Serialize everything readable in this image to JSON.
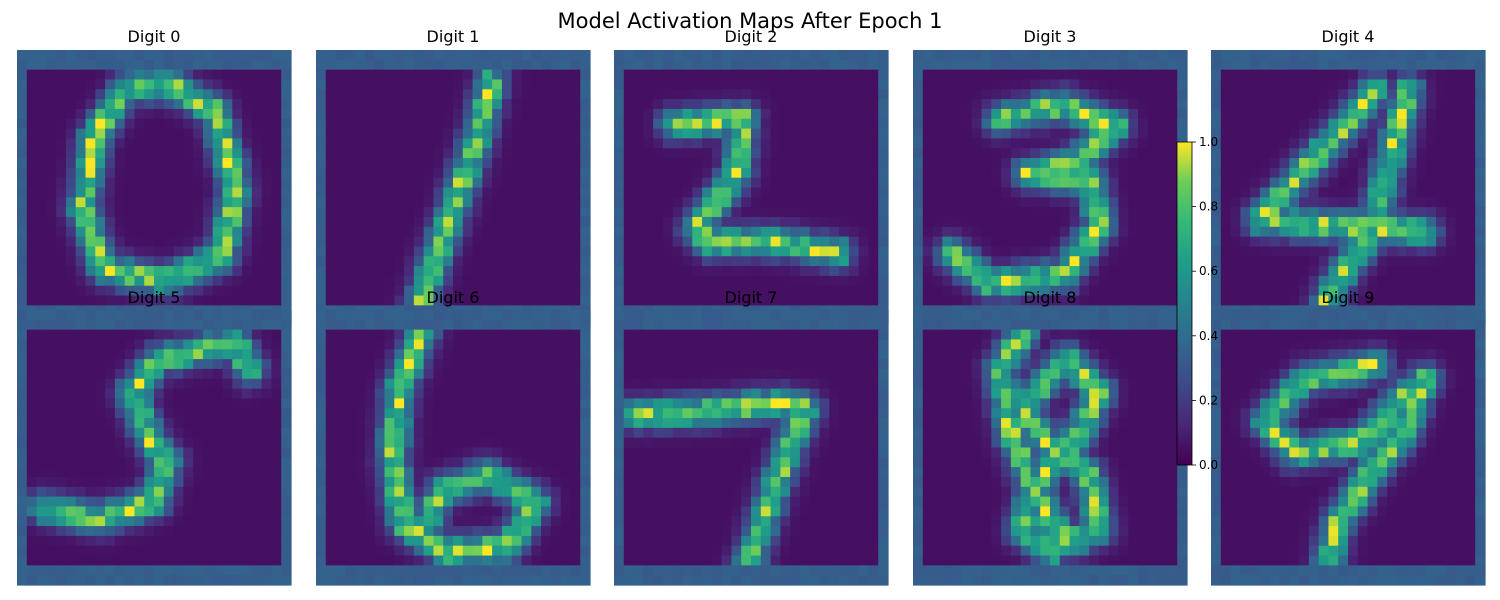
{
  "figure": {
    "title": "Model Activation Maps After Epoch 1"
  },
  "chart_data": {
    "type": "heatmap",
    "title": "Model Activation Maps After Epoch 1",
    "colormap": "viridis",
    "grid": false,
    "layout": "2 rows x 5 columns",
    "panels": [
      {
        "title": "Digit 0",
        "stroke": [
          [
            0.56,
            0.13
          ],
          [
            0.4,
            0.14
          ],
          [
            0.28,
            0.32
          ],
          [
            0.24,
            0.58
          ],
          [
            0.32,
            0.8
          ],
          [
            0.55,
            0.84
          ],
          [
            0.75,
            0.75
          ],
          [
            0.8,
            0.5
          ],
          [
            0.72,
            0.22
          ],
          [
            0.56,
            0.13
          ]
        ]
      },
      {
        "title": "Digit 1",
        "stroke": [
          [
            0.64,
            0.12
          ],
          [
            0.58,
            0.35
          ],
          [
            0.5,
            0.58
          ],
          [
            0.42,
            0.8
          ],
          [
            0.38,
            0.93
          ]
        ]
      },
      {
        "title": "Digit 2",
        "stroke": [
          [
            0.22,
            0.27
          ],
          [
            0.47,
            0.25
          ],
          [
            0.45,
            0.45
          ],
          [
            0.3,
            0.65
          ],
          [
            0.35,
            0.7
          ],
          [
            0.6,
            0.7
          ],
          [
            0.82,
            0.74
          ]
        ]
      },
      {
        "title": "Digit 3",
        "stroke": [
          [
            0.32,
            0.25
          ],
          [
            0.55,
            0.2
          ],
          [
            0.74,
            0.28
          ],
          [
            0.58,
            0.42
          ],
          [
            0.42,
            0.45
          ],
          [
            0.65,
            0.48
          ],
          [
            0.68,
            0.64
          ],
          [
            0.55,
            0.82
          ],
          [
            0.28,
            0.85
          ],
          [
            0.14,
            0.74
          ]
        ]
      },
      {
        "title": "Digit 4",
        "stroke": [
          [
            0.6,
            0.15
          ],
          [
            0.42,
            0.35
          ],
          [
            0.18,
            0.62
          ],
          [
            0.6,
            0.65
          ],
          [
            0.78,
            0.66
          ],
          null,
          [
            0.72,
            0.15
          ],
          [
            0.64,
            0.45
          ],
          [
            0.6,
            0.65
          ],
          [
            0.5,
            0.78
          ],
          [
            0.42,
            0.92
          ]
        ]
      },
      {
        "title": "Digit 5",
        "stroke": [
          [
            0.8,
            0.12
          ],
          [
            0.52,
            0.18
          ],
          [
            0.42,
            0.3
          ],
          [
            0.48,
            0.46
          ],
          [
            0.55,
            0.55
          ],
          [
            0.5,
            0.7
          ],
          [
            0.3,
            0.76
          ],
          [
            0.1,
            0.72
          ],
          null,
          [
            0.8,
            0.12
          ],
          [
            0.85,
            0.22
          ]
        ]
      },
      {
        "title": "Digit 6",
        "stroke": [
          [
            0.4,
            0.05
          ],
          [
            0.3,
            0.3
          ],
          [
            0.28,
            0.55
          ],
          [
            0.32,
            0.78
          ],
          [
            0.48,
            0.88
          ],
          [
            0.7,
            0.86
          ],
          [
            0.8,
            0.7
          ],
          [
            0.62,
            0.6
          ],
          [
            0.46,
            0.66
          ],
          [
            0.4,
            0.78
          ]
        ]
      },
      {
        "title": "Digit 7",
        "stroke": [
          [
            0.08,
            0.38
          ],
          [
            0.32,
            0.37
          ],
          [
            0.6,
            0.34
          ],
          [
            0.7,
            0.36
          ],
          [
            0.62,
            0.55
          ],
          [
            0.54,
            0.78
          ],
          [
            0.48,
            0.96
          ]
        ]
      },
      {
        "title": "Digit 8",
        "stroke": [
          [
            0.4,
            0.08
          ],
          [
            0.32,
            0.22
          ],
          [
            0.36,
            0.45
          ],
          [
            0.44,
            0.65
          ],
          [
            0.56,
            0.85
          ],
          [
            0.68,
            0.8
          ],
          [
            0.64,
            0.6
          ],
          [
            0.5,
            0.5
          ],
          [
            0.4,
            0.35
          ],
          [
            0.56,
            0.18
          ],
          [
            0.68,
            0.3
          ],
          [
            0.6,
            0.46
          ],
          [
            0.44,
            0.65
          ],
          [
            0.4,
            0.8
          ],
          [
            0.5,
            0.88
          ]
        ]
      },
      {
        "title": "Digit 9",
        "stroke": [
          [
            0.6,
            0.2
          ],
          [
            0.35,
            0.25
          ],
          [
            0.2,
            0.4
          ],
          [
            0.3,
            0.52
          ],
          [
            0.55,
            0.48
          ],
          [
            0.7,
            0.32
          ],
          [
            0.78,
            0.25
          ],
          [
            0.7,
            0.45
          ],
          [
            0.58,
            0.6
          ],
          [
            0.46,
            0.78
          ],
          [
            0.42,
            0.96
          ]
        ]
      }
    ],
    "colorbar": {
      "range": [
        0.0,
        1.0
      ],
      "ticks": [
        "0.0",
        "0.2",
        "0.4",
        "0.6",
        "0.8",
        "1.0"
      ]
    }
  }
}
